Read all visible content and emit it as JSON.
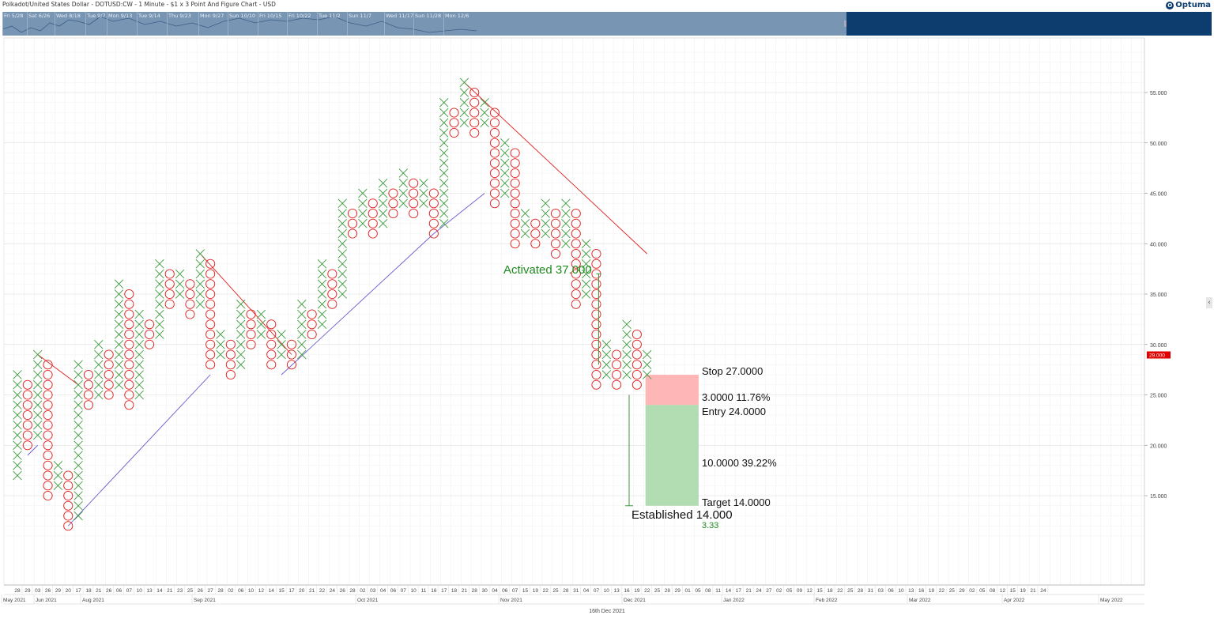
{
  "header": {
    "title": "Polkadot/United States Dollar - DOTUSD:CW - 1 Minute - $1 x 3 Point And Figure Chart - USD",
    "logo": "Optuma"
  },
  "navigator": {
    "labels": [
      "Fri 5/28",
      "Sat 6/26",
      "Wed 8/18",
      "Tue 9/7",
      "Mon 9/13",
      "Tue 9/14",
      "Thu 9/23",
      "Mon 9/27",
      "Sun 10/10",
      "Fri 10/15",
      "Fri 10/22",
      "Tue 11/2",
      "Sun 11/7",
      "Wed 11/17",
      "Sun 11/28",
      "Mon 12/6"
    ]
  },
  "chart_data": {
    "type": "point-and-figure",
    "box_size": 1,
    "reversal": 3,
    "ylim": [
      10,
      60
    ],
    "y_ticks": [
      "55.000",
      "50.000",
      "45.000",
      "40.000",
      "35.000",
      "30.000",
      "25.000",
      "20.000",
      "15.000"
    ],
    "current_price_label": "29.000",
    "columns": [
      {
        "type": "X",
        "low": 17,
        "high": 27
      },
      {
        "type": "O",
        "low": 20,
        "high": 26
      },
      {
        "type": "X",
        "low": 21,
        "high": 29
      },
      {
        "type": "O",
        "low": 15,
        "high": 28
      },
      {
        "type": "X",
        "low": 16,
        "high": 18
      },
      {
        "type": "O",
        "low": 12,
        "high": 17
      },
      {
        "type": "X",
        "low": 13,
        "high": 28
      },
      {
        "type": "O",
        "low": 24,
        "high": 27
      },
      {
        "type": "X",
        "low": 25,
        "high": 30
      },
      {
        "type": "O",
        "low": 25,
        "high": 29
      },
      {
        "type": "X",
        "low": 26,
        "high": 36
      },
      {
        "type": "O",
        "low": 24,
        "high": 35
      },
      {
        "type": "X",
        "low": 25,
        "high": 33
      },
      {
        "type": "O",
        "low": 30,
        "high": 32
      },
      {
        "type": "X",
        "low": 31,
        "high": 38
      },
      {
        "type": "O",
        "low": 34,
        "high": 37
      },
      {
        "type": "X",
        "low": 35,
        "high": 37
      },
      {
        "type": "O",
        "low": 33,
        "high": 36
      },
      {
        "type": "X",
        "low": 34,
        "high": 39
      },
      {
        "type": "O",
        "low": 28,
        "high": 38
      },
      {
        "type": "X",
        "low": 29,
        "high": 31
      },
      {
        "type": "O",
        "low": 27,
        "high": 30
      },
      {
        "type": "X",
        "low": 28,
        "high": 34
      },
      {
        "type": "O",
        "low": 30,
        "high": 33
      },
      {
        "type": "X",
        "low": 31,
        "high": 33
      },
      {
        "type": "O",
        "low": 28,
        "high": 32
      },
      {
        "type": "X",
        "low": 29,
        "high": 31
      },
      {
        "type": "O",
        "low": 28,
        "high": 30
      },
      {
        "type": "X",
        "low": 29,
        "high": 34
      },
      {
        "type": "O",
        "low": 31,
        "high": 33
      },
      {
        "type": "X",
        "low": 32,
        "high": 38
      },
      {
        "type": "O",
        "low": 34,
        "high": 37
      },
      {
        "type": "X",
        "low": 35,
        "high": 44
      },
      {
        "type": "O",
        "low": 41,
        "high": 43
      },
      {
        "type": "X",
        "low": 42,
        "high": 45
      },
      {
        "type": "O",
        "low": 41,
        "high": 44
      },
      {
        "type": "X",
        "low": 42,
        "high": 46
      },
      {
        "type": "O",
        "low": 43,
        "high": 45
      },
      {
        "type": "X",
        "low": 44,
        "high": 47
      },
      {
        "type": "O",
        "low": 43,
        "high": 46
      },
      {
        "type": "X",
        "low": 44,
        "high": 46
      },
      {
        "type": "O",
        "low": 41,
        "high": 45
      },
      {
        "type": "X",
        "low": 42,
        "high": 54
      },
      {
        "type": "O",
        "low": 51,
        "high": 53
      },
      {
        "type": "X",
        "low": 52,
        "high": 56
      },
      {
        "type": "O",
        "low": 51,
        "high": 55
      },
      {
        "type": "X",
        "low": 52,
        "high": 54
      },
      {
        "type": "O",
        "low": 44,
        "high": 53
      },
      {
        "type": "X",
        "low": 45,
        "high": 50
      },
      {
        "type": "O",
        "low": 40,
        "high": 49
      },
      {
        "type": "X",
        "low": 41,
        "high": 43
      },
      {
        "type": "O",
        "low": 40,
        "high": 42
      },
      {
        "type": "X",
        "low": 41,
        "high": 44
      },
      {
        "type": "O",
        "low": 39,
        "high": 43
      },
      {
        "type": "X",
        "low": 40,
        "high": 44
      },
      {
        "type": "O",
        "low": 34,
        "high": 43
      },
      {
        "type": "X",
        "low": 35,
        "high": 40
      },
      {
        "type": "O",
        "low": 26,
        "high": 39
      },
      {
        "type": "X",
        "low": 27,
        "high": 30
      },
      {
        "type": "O",
        "low": 26,
        "high": 29
      },
      {
        "type": "X",
        "low": 27,
        "high": 32
      },
      {
        "type": "O",
        "low": 26,
        "high": 31
      },
      {
        "type": "X",
        "low": 27,
        "high": 29
      }
    ],
    "trendlines": [
      {
        "color": "#e02020",
        "from": [
          2,
          29
        ],
        "to": [
          6,
          26
        ]
      },
      {
        "color": "#6a5acd",
        "from": [
          1,
          19
        ],
        "to": [
          2,
          20
        ]
      },
      {
        "color": "#6a5acd",
        "from": [
          5,
          12
        ],
        "to": [
          19,
          27
        ]
      },
      {
        "color": "#e02020",
        "from": [
          18,
          39
        ],
        "to": [
          27,
          29
        ]
      },
      {
        "color": "#6a5acd",
        "from": [
          26,
          27
        ],
        "to": [
          41,
          41
        ]
      },
      {
        "color": "#6a5acd",
        "from": [
          41,
          41
        ],
        "to": [
          46,
          45
        ]
      },
      {
        "color": "#e02020",
        "from": [
          44,
          56
        ],
        "to": [
          62,
          39
        ]
      }
    ],
    "annotations": {
      "activated": "Activated 37.000",
      "activated_price": 37,
      "established": "Established 14.000",
      "established_price": 14,
      "established_ratio": "3.33",
      "stop_label": "Stop   27.0000",
      "stop_price": 27,
      "risk_label": "3.0000   11.76%",
      "entry_label": "Entry   24.0000",
      "entry_price": 24,
      "reward_label": "10.0000   39.22%",
      "target_label": "Target   14.0000",
      "target_price": 14
    },
    "x_day_ticks": [
      "28",
      "29",
      "03",
      "26",
      "29",
      "20",
      "17",
      "18",
      "21",
      "26",
      "06",
      "07",
      "10",
      "13",
      "14",
      "21",
      "23",
      "25",
      "26",
      "27",
      "28",
      "02",
      "06",
      "10",
      "12",
      "14",
      "15",
      "17",
      "20",
      "21",
      "22",
      "24",
      "26",
      "28",
      "02",
      "03",
      "04",
      "06",
      "07",
      "10",
      "11",
      "16",
      "17",
      "18",
      "21",
      "28",
      "30",
      "04",
      "06",
      "07",
      "15",
      "19",
      "22",
      "25",
      "28",
      "31",
      "04",
      "07",
      "10",
      "13",
      "16",
      "19",
      "22",
      "25",
      "28",
      "29",
      "01",
      "05",
      "08",
      "11",
      "14",
      "17",
      "21",
      "24",
      "27",
      "02",
      "05",
      "09",
      "12",
      "15",
      "18",
      "22",
      "25",
      "28",
      "31",
      "03",
      "06",
      "10",
      "13",
      "16",
      "19",
      "22",
      "25",
      "29",
      "02",
      "05",
      "08",
      "12",
      "15",
      "19",
      "21",
      "24"
    ],
    "x_month_ticks": [
      "May 2021",
      "Jun 2021",
      "Aug 2021",
      "Sep 2021",
      "Oct 2021",
      "Nov 2021",
      "Dec 2021",
      "Jan 2022",
      "Feb 2022",
      "Mar 2022",
      "Apr 2022",
      "May 2022"
    ],
    "x_axis_footer": "16th Dec 2021",
    "colors": {
      "x": "#3a9a3a",
      "o": "#e02020",
      "stop_zone": "#ffb6b6",
      "target_zone": "#b2dcb2",
      "activated_text": "#1f8a1f",
      "price_tag": "#e00000"
    }
  }
}
